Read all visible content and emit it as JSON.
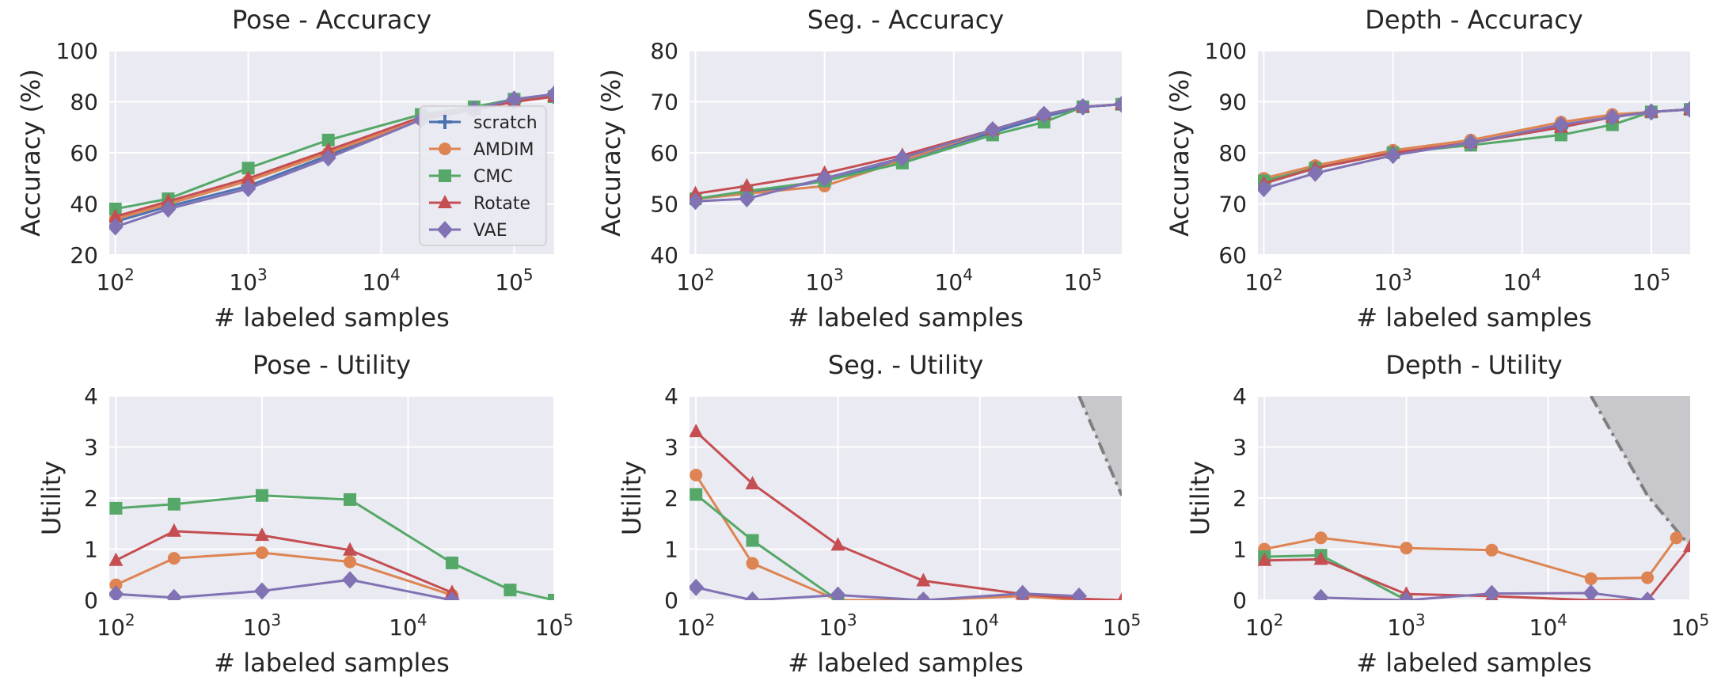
{
  "colors": {
    "background": "#eaeaf2",
    "grid": "#ffffff",
    "scratch": "#4c72b0",
    "AMDIM": "#dd8452",
    "CMC": "#55a868",
    "Rotate": "#c44e52",
    "VAE": "#8172b3",
    "shade": "#c8c8cc",
    "shade_line": "#7f7f7f"
  },
  "legend": [
    {
      "name": "scratch",
      "marker": "plus-icon"
    },
    {
      "name": "AMDIM",
      "marker": "circle-icon"
    },
    {
      "name": "CMC",
      "marker": "square-icon"
    },
    {
      "name": "Rotate",
      "marker": "triangle-icon"
    },
    {
      "name": "VAE",
      "marker": "diamond-icon"
    }
  ],
  "chart_data": [
    {
      "type": "line",
      "title": "Pose - Accuracy",
      "xlabel": "# labeled samples",
      "ylabel": "Accuracy (%)",
      "xscale": "log",
      "xlim": [
        90,
        200000
      ],
      "ylim": [
        20,
        100
      ],
      "yticks": [
        20,
        40,
        60,
        80,
        100
      ],
      "xticks": [
        100,
        1000,
        10000,
        100000
      ],
      "xtick_labels": [
        "2",
        "3",
        "4",
        "5"
      ],
      "legend_position": "right",
      "series": [
        {
          "name": "scratch",
          "x": [
            100,
            250,
            1000,
            4000,
            20000,
            50000,
            100000,
            200000
          ],
          "y": [
            33,
            39,
            47,
            59,
            73,
            77,
            80,
            82
          ]
        },
        {
          "name": "AMDIM",
          "x": [
            100,
            250,
            1000,
            4000,
            20000,
            50000,
            100000,
            200000
          ],
          "y": [
            34,
            40,
            49,
            60,
            73,
            77,
            80,
            82
          ]
        },
        {
          "name": "CMC",
          "x": [
            100,
            250,
            1000,
            4000,
            20000,
            50000,
            100000,
            200000
          ],
          "y": [
            38,
            42,
            54,
            65,
            75,
            78,
            81,
            82
          ]
        },
        {
          "name": "Rotate",
          "x": [
            100,
            250,
            1000,
            4000,
            20000,
            50000,
            100000,
            200000
          ],
          "y": [
            35,
            41,
            50,
            61,
            74,
            77,
            80,
            82
          ]
        },
        {
          "name": "VAE",
          "x": [
            100,
            250,
            1000,
            4000,
            20000,
            50000,
            100000,
            200000
          ],
          "y": [
            31,
            38,
            46,
            58,
            73,
            77,
            81,
            83
          ]
        }
      ]
    },
    {
      "type": "line",
      "title": "Seg. - Accuracy",
      "xlabel": "# labeled samples",
      "ylabel": "Accuracy (%)",
      "xscale": "log",
      "xlim": [
        90,
        200000
      ],
      "ylim": [
        40,
        80
      ],
      "yticks": [
        40,
        50,
        60,
        70,
        80
      ],
      "xticks": [
        100,
        1000,
        10000,
        100000
      ],
      "xtick_labels": [
        "2",
        "3",
        "4",
        "5"
      ],
      "series": [
        {
          "name": "scratch",
          "x": [
            100,
            250,
            1000,
            4000,
            20000,
            50000,
            100000,
            200000
          ],
          "y": [
            51,
            52,
            54.5,
            58.5,
            64,
            67,
            69,
            69.5
          ]
        },
        {
          "name": "AMDIM",
          "x": [
            100,
            250,
            1000,
            4000,
            20000,
            50000,
            100000,
            200000
          ],
          "y": [
            51,
            52,
            53.5,
            58.5,
            64.5,
            67.5,
            69,
            69.5
          ]
        },
        {
          "name": "CMC",
          "x": [
            100,
            250,
            1000,
            4000,
            20000,
            50000,
            100000,
            200000
          ],
          "y": [
            51,
            52.5,
            54.5,
            58,
            63.5,
            66,
            69,
            69.5
          ]
        },
        {
          "name": "Rotate",
          "x": [
            100,
            250,
            1000,
            4000,
            20000,
            50000,
            100000,
            200000
          ],
          "y": [
            52,
            53.5,
            56,
            59.5,
            64.5,
            67.5,
            69,
            69.5
          ]
        },
        {
          "name": "VAE",
          "x": [
            100,
            250,
            1000,
            4000,
            20000,
            50000,
            100000,
            200000
          ],
          "y": [
            50.5,
            51,
            55,
            59,
            64.5,
            67.5,
            69,
            69.5
          ]
        }
      ]
    },
    {
      "type": "line",
      "title": "Depth - Accuracy",
      "xlabel": "# labeled samples",
      "ylabel": "Accuracy (%)",
      "xscale": "log",
      "xlim": [
        90,
        200000
      ],
      "ylim": [
        60,
        100
      ],
      "yticks": [
        60,
        70,
        80,
        90,
        100
      ],
      "xticks": [
        100,
        1000,
        10000,
        100000
      ],
      "xtick_labels": [
        "2",
        "3",
        "4",
        "5"
      ],
      "series": [
        {
          "name": "scratch",
          "x": [
            100,
            250,
            1000,
            4000,
            20000,
            50000,
            100000,
            200000
          ],
          "y": [
            74,
            77,
            80,
            82,
            85,
            87,
            88,
            88.5
          ]
        },
        {
          "name": "AMDIM",
          "x": [
            100,
            250,
            1000,
            4000,
            20000,
            50000,
            100000,
            200000
          ],
          "y": [
            75,
            77.5,
            80.5,
            82.5,
            86,
            87.5,
            88,
            88.5
          ]
        },
        {
          "name": "CMC",
          "x": [
            100,
            250,
            1000,
            4000,
            20000,
            50000,
            100000,
            200000
          ],
          "y": [
            74.5,
            77,
            80,
            81.5,
            83.5,
            85.5,
            88,
            88.5
          ]
        },
        {
          "name": "Rotate",
          "x": [
            100,
            250,
            1000,
            4000,
            20000,
            50000,
            100000,
            200000
          ],
          "y": [
            74,
            77,
            80,
            82,
            85,
            87,
            88,
            88.5
          ]
        },
        {
          "name": "VAE",
          "x": [
            100,
            250,
            1000,
            4000,
            20000,
            50000,
            100000,
            200000
          ],
          "y": [
            73,
            76,
            79.5,
            82,
            85.5,
            87,
            88,
            88.5
          ]
        }
      ]
    },
    {
      "type": "line",
      "title": "Pose - Utility",
      "xlabel": "# labeled samples",
      "ylabel": "Utility",
      "xscale": "log",
      "xlim": [
        90,
        100000
      ],
      "ylim": [
        0,
        4
      ],
      "yticks": [
        0,
        1,
        2,
        3,
        4
      ],
      "xticks": [
        100,
        1000,
        10000,
        100000
      ],
      "xtick_labels": [
        "2",
        "3",
        "4",
        "5"
      ],
      "series": [
        {
          "name": "AMDIM",
          "x": [
            100,
            250,
            1000,
            4000,
            20000
          ],
          "y": [
            0.3,
            0.82,
            0.93,
            0.75,
            0.1
          ]
        },
        {
          "name": "CMC",
          "x": [
            100,
            250,
            1000,
            4000,
            20000,
            50000,
            100000
          ],
          "y": [
            1.8,
            1.88,
            2.05,
            1.97,
            0.73,
            0.2,
            0
          ]
        },
        {
          "name": "Rotate",
          "x": [
            100,
            250,
            1000,
            4000,
            20000
          ],
          "y": [
            0.78,
            1.35,
            1.27,
            0.98,
            0.15
          ]
        },
        {
          "name": "VAE",
          "x": [
            100,
            250,
            1000,
            4000,
            20000
          ],
          "y": [
            0.12,
            0.05,
            0.18,
            0.4,
            0
          ]
        }
      ]
    },
    {
      "type": "line",
      "title": "Seg. - Utility",
      "xlabel": "# labeled samples",
      "ylabel": "Utility",
      "xscale": "log",
      "xlim": [
        90,
        100000
      ],
      "ylim": [
        0,
        4
      ],
      "yticks": [
        0,
        1,
        2,
        3,
        4
      ],
      "xticks": [
        100,
        1000,
        10000,
        100000
      ],
      "xtick_labels": [
        "2",
        "3",
        "4",
        "5"
      ],
      "shade": {
        "x": [
          50000,
          100000
        ],
        "y": [
          4,
          2.05
        ]
      },
      "series": [
        {
          "name": "AMDIM",
          "x": [
            100,
            250,
            1000,
            4000,
            20000,
            50000
          ],
          "y": [
            2.45,
            0.72,
            0,
            0,
            0.08,
            0
          ]
        },
        {
          "name": "CMC",
          "x": [
            100,
            250,
            1000
          ],
          "y": [
            2.07,
            1.17,
            0
          ]
        },
        {
          "name": "Rotate",
          "x": [
            100,
            250,
            1000,
            4000,
            20000,
            50000,
            100000
          ],
          "y": [
            3.3,
            2.28,
            1.08,
            0.38,
            0.12,
            0.03,
            0
          ]
        },
        {
          "name": "VAE",
          "x": [
            100,
            250,
            1000,
            4000,
            20000,
            50000
          ],
          "y": [
            0.25,
            0,
            0.1,
            0,
            0.13,
            0.08
          ]
        }
      ]
    },
    {
      "type": "line",
      "title": "Depth - Utility",
      "xlabel": "# labeled samples",
      "ylabel": "Utility",
      "xscale": "log",
      "xlim": [
        90,
        100000
      ],
      "ylim": [
        0,
        4
      ],
      "yticks": [
        0,
        1,
        2,
        3,
        4
      ],
      "xticks": [
        100,
        1000,
        10000,
        100000
      ],
      "xtick_labels": [
        "2",
        "3",
        "4",
        "5"
      ],
      "shade": {
        "x": [
          20000,
          50000,
          100000
        ],
        "y": [
          4,
          2.05,
          1.05
        ]
      },
      "series": [
        {
          "name": "AMDIM",
          "x": [
            100,
            250,
            1000,
            4000,
            20000,
            50000,
            80000
          ],
          "y": [
            1.0,
            1.22,
            1.02,
            0.98,
            0.42,
            0.44,
            1.22
          ]
        },
        {
          "name": "CMC",
          "x": [
            100,
            250,
            1000
          ],
          "y": [
            0.85,
            0.88,
            0
          ]
        },
        {
          "name": "Rotate",
          "x": [
            100,
            250,
            1000,
            4000,
            20000,
            50000,
            100000
          ],
          "y": [
            0.78,
            0.8,
            0.12,
            0.08,
            0,
            0,
            1.05
          ]
        },
        {
          "name": "VAE",
          "x": [
            250,
            1000,
            4000,
            20000,
            50000
          ],
          "y": [
            0.05,
            0,
            0.13,
            0.14,
            0
          ]
        }
      ]
    }
  ]
}
